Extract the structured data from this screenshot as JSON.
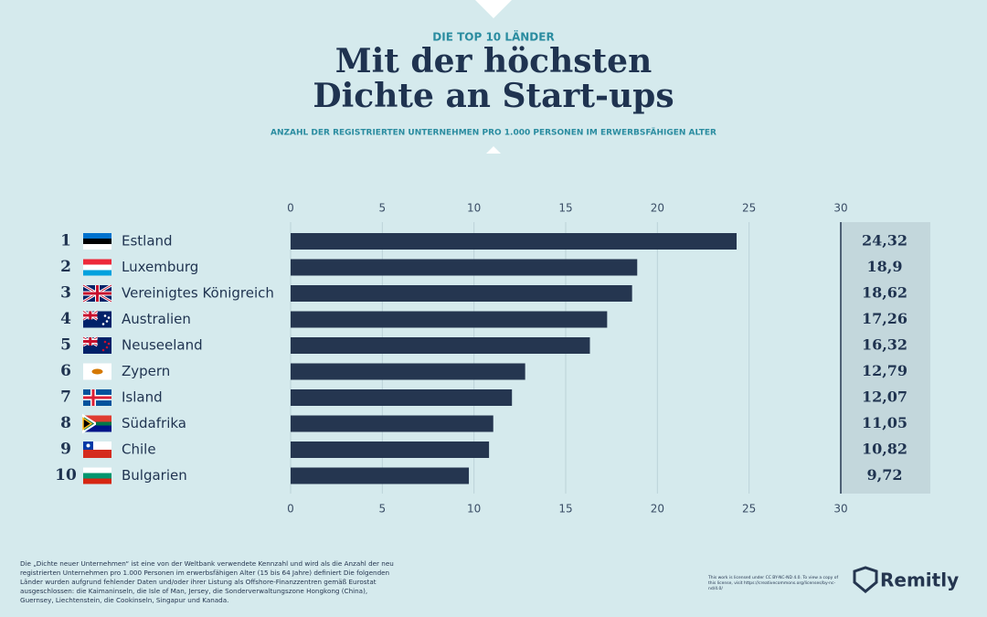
{
  "chart_data": {
    "type": "bar",
    "kicker": "DIE TOP 10 LÄNDER",
    "title_lines": [
      "Mit der höchsten",
      "Dichte an Start-ups"
    ],
    "subtitle": "ANZAHL DER REGISTRIERTEN UNTERNEHMEN PRO 1.000 PERSONEN IM ERWERBSFÄHIGEN ALTER",
    "ranks": [
      "1",
      "2",
      "3",
      "4",
      "5",
      "6",
      "7",
      "8",
      "9",
      "10"
    ],
    "categories": [
      "Estland",
      "Luxemburg",
      "Vereinigtes Königreich",
      "Australien",
      "Neuseeland",
      "Zypern",
      "Island",
      "Südafrika",
      "Chile",
      "Bulgarien"
    ],
    "values": [
      24.32,
      18.9,
      18.62,
      17.26,
      16.32,
      12.79,
      12.07,
      11.05,
      10.82,
      9.72
    ],
    "value_labels": [
      "24,32",
      "18,9",
      "18,62",
      "17,26",
      "16,32",
      "12,79",
      "12,07",
      "11,05",
      "10,82",
      "9,72"
    ],
    "color": "#253650",
    "xlim": [
      0,
      30
    ],
    "xticks": [
      0,
      5,
      10,
      15,
      20,
      25,
      30
    ],
    "grid": true
  },
  "footnote": "Die „Dichte neuer Unternehmen“ ist eine von der Weltbank verwendete Kennzahl und wird als die Anzahl der neu registrierten Unternehmen pro 1.000 Personen im erwerbsfähigen Alter (15 bis 64 Jahre) definiert Die folgenden Länder wurden aufgrund fehlender Daten und/oder ihrer Listung als Offshore-Finanzzentren gemäß Eurostat ausgeschlossen: die Kaimaninseln, die Isle of Man, Jersey, die Sonderverwaltungszone Hongkong (China), Guernsey, Liechtenstein, die Cookinseln, Singapur und Kanada.",
  "license": "This work is licensed under CC BY-NC-ND 4.0. To view a copy of this license, visit https://creativecommons.org/licenses/by-nc-nd/4.0/",
  "brand": "Remitly"
}
